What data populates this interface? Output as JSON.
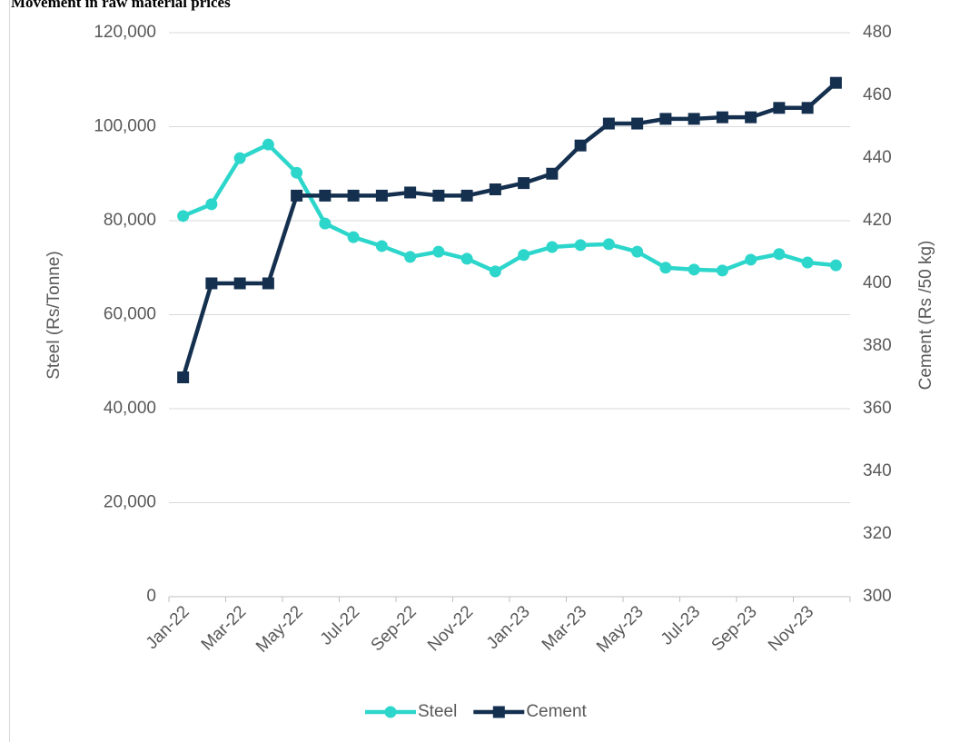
{
  "chart_data": {
    "type": "line",
    "title": "Movement in raw material prices",
    "categories": [
      "Jan-22",
      null,
      "Mar-22",
      null,
      "May-22",
      null,
      "Jul-22",
      null,
      "Sep-22",
      null,
      "Nov-22",
      null,
      "Jan-23",
      null,
      "Mar-23",
      null,
      "May-23",
      null,
      "Jul-23",
      null,
      "Sep-23",
      null,
      "Nov-23",
      null
    ],
    "ylabel": "Steel (Rs/Tonne)",
    "y2label": "Cement (Rs /50 kg)",
    "ylim": [
      0,
      120000
    ],
    "yticks": [
      0,
      {
        "value": 20000,
        "label": "20,000"
      },
      {
        "value": 40000,
        "label": "40,000"
      },
      {
        "value": 60000,
        "label": "60,000"
      },
      {
        "value": 80000,
        "label": "80,000"
      },
      {
        "value": 100000,
        "label": "100,000"
      },
      {
        "value": 120000,
        "label": "120,000"
      }
    ],
    "y2lim": [
      300,
      480
    ],
    "y2ticks": [
      300,
      320,
      340,
      360,
      380,
      400,
      420,
      440,
      460,
      480
    ],
    "grid": true,
    "legend": "bottom",
    "series": [
      {
        "name": "Steel",
        "color": "#2dd6cb",
        "marker": "circle",
        "values": [
          81000,
          83500,
          93300,
          96200,
          90200,
          79400,
          76500,
          74600,
          72300,
          73400,
          71900,
          69200,
          72700,
          74400,
          74800,
          75000,
          73400,
          70000,
          69600,
          69400,
          71700,
          72900,
          71100,
          70500
        ]
      },
      {
        "name": "Cement",
        "color": "#15304f",
        "marker": "square",
        "axis": "y2",
        "values": [
          370,
          400,
          400,
          400,
          428,
          428,
          428,
          428,
          429,
          428,
          428,
          430,
          432,
          435,
          444,
          451,
          451,
          452.5,
          452.5,
          453,
          453,
          456,
          456,
          464
        ]
      }
    ]
  }
}
